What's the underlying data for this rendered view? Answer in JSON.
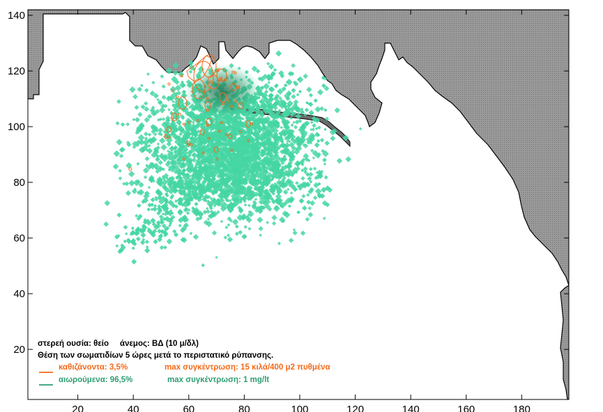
{
  "map": {
    "axes": {
      "x_ticks": [
        "20",
        "40",
        "60",
        "80",
        "100",
        "120",
        "140",
        "160",
        "180"
      ],
      "y_ticks": [
        "20",
        "40",
        "60",
        "80",
        "100",
        "120",
        "140"
      ]
    },
    "x_range": [
      2,
      197
    ],
    "y_range": [
      2,
      142
    ],
    "legend": {
      "line1": "στερεή ουσία: θείο     άνεμος: ΒΔ (10 μ/δλ)",
      "line2": "Θέση των σωματιδίων 5 ώρες μετά το περιστατικό ρύπανσης.",
      "settled_label": "καθιζάνοντα: 3,5%",
      "settled_max": "max συγκέντρωση: 15 κιλά/400 μ2 πυθμένα",
      "suspended_label": "αιωρούμενα: 96,5%",
      "suspended_max": "max συγκέντρωση: 1 mg/lt"
    },
    "colors": {
      "land": "#8c8c8c",
      "land_edge": "#000000",
      "suspended": "#45d6a3",
      "suspended_core": "#1f7a55",
      "settled": "#f26a1b"
    }
  }
}
